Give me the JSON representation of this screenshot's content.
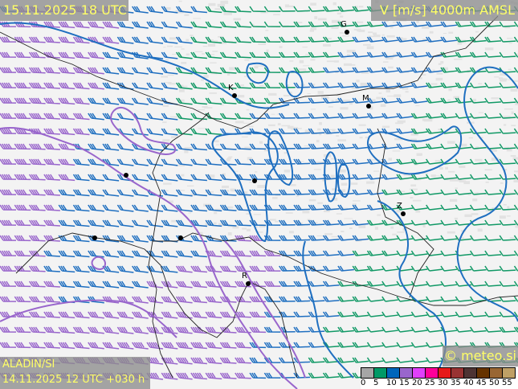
{
  "header": {
    "valid_time": "15.11.2025 18 UTC",
    "field": "V [m/s] 4000m AMSL"
  },
  "footer": {
    "model": "ALADIN/SI",
    "run": "14.11.2025 12 UTC +030 h",
    "copyright": "© meteo.si"
  },
  "legend": {
    "unit": "m/s",
    "ticks": [
      "0",
      "5",
      "10",
      "15",
      "20",
      "25",
      "30",
      "35",
      "40",
      "45",
      "50",
      "55"
    ],
    "colors": [
      "#a6a6a6",
      "#009966",
      "#0066bb",
      "#9966cc",
      "#e040fb",
      "#ff0099",
      "#e61919",
      "#993333",
      "#4d3333",
      "#663300",
      "#996633",
      "#bfa066"
    ]
  },
  "colors": {
    "background": "#f3f3f3",
    "contour_10": "#1f6fc0",
    "contour_15": "#9966cc",
    "barb_5_10": "#119966",
    "barb_10_15": "#1f6fc0",
    "barb_15_20": "#9966cc",
    "borders": "#222222"
  },
  "cities": [
    {
      "label": "G"
    },
    {
      "label": "K"
    },
    {
      "label": "M"
    },
    {
      "label": ""
    },
    {
      "label": ""
    },
    {
      "label": "Z"
    },
    {
      "label": "R"
    },
    {
      "label": ""
    },
    {
      "label": ""
    }
  ]
}
